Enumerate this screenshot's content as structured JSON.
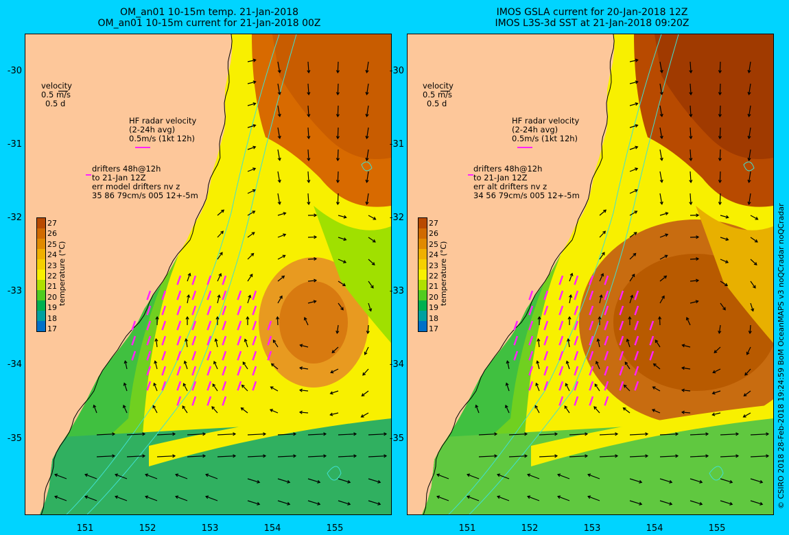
{
  "left_panel": {
    "title_line1": "OM_an01 10-15m temp. 21-Jan-2018",
    "title_line2": "OM_an01 10-15m current for 21-Jan-2018 00Z",
    "drifters_line1": "drifters 48h@12h",
    "drifters_line2": "to 21-Jan 12Z",
    "drifters_line3": "err model drifters nv z",
    "drifters_line4": "35 86 79cm/s 005 12+-5m"
  },
  "right_panel": {
    "title_line1": "IMOS GSLA current for 20-Jan-2018 12Z",
    "title_line2": "IMOS L3S-3d SST at 21-Jan-2018 09:20Z",
    "drifters_line1": "drifters 48h@12h",
    "drifters_line2": "to 21-Jan 12Z",
    "drifters_line3": "err alt drifters nv z",
    "drifters_line4": "34 56 79cm/s 005 12+-5m"
  },
  "legend": {
    "velocity_title": "velocity",
    "velocity_scale1": "0.5 m/s",
    "velocity_scale2": "0.5 d",
    "hf_line1": "HF radar velocity",
    "hf_line2": "(2-24h avg)",
    "hf_line3": "0.5m/s (1kt 12h)"
  },
  "axes": {
    "x_ticks": [
      "151",
      "152",
      "153",
      "154",
      "155"
    ],
    "y_ticks": [
      "-30",
      "-31",
      "-32",
      "-33",
      "-34",
      "-35"
    ]
  },
  "colorbar": {
    "label": "temperature (°C)",
    "ticks": [
      "27",
      "26",
      "25",
      "24",
      "23",
      "22",
      "21",
      "20",
      "19",
      "18",
      "17"
    ],
    "colors": [
      "#b84a00",
      "#d06a00",
      "#e08a00",
      "#f0b000",
      "#f5d000",
      "#f8f000",
      "#b0e000",
      "#50cc20",
      "#00b050",
      "#00a0a0",
      "#0070c8",
      "#0040a8",
      "#002080"
    ]
  },
  "credit": "© CSIRO 2018  28-Feb-2018 19:24:59 BoM OceanMAPS v3 noQCradar noQCradar",
  "colors": {
    "land": "#fdc79a",
    "background": "#00d4ff",
    "drifter": "#ff22ff",
    "contour": "#40e0d0"
  }
}
